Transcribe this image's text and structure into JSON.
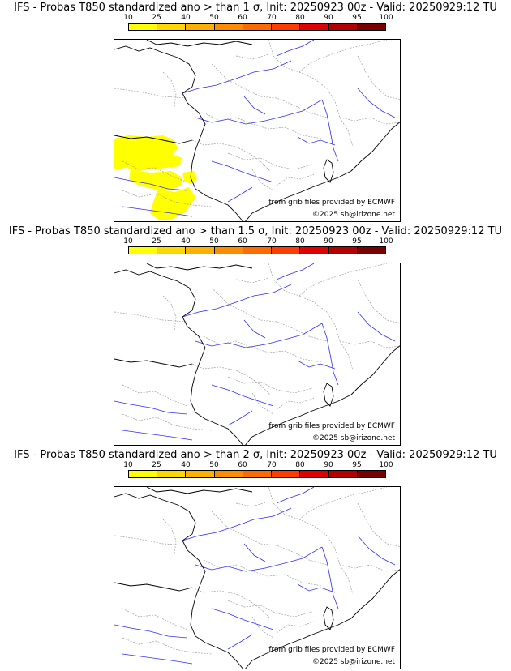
{
  "panels": [
    {
      "title": "IFS - Probas T850  standardized ano > than 1 σ, Init: 20250923 00z - Valid: 20250929:12 TU",
      "has_anomaly": true
    },
    {
      "title": "IFS - Probas T850  standardized ano > than 1.5 σ, Init: 20250923 00z - Valid: 20250929:12 TU",
      "has_anomaly": false
    },
    {
      "title": "IFS - Probas T850  standardized ano > than 2 σ, Init: 20250923 00z - Valid: 20250929:12 TU",
      "has_anomaly": false
    }
  ],
  "scale_labels": [
    "10",
    "25",
    "40",
    "50",
    "60",
    "70",
    "80",
    "90",
    "95",
    "100"
  ],
  "scale_colors": [
    "#ffff00",
    "#ffd700",
    "#ffb000",
    "#ff8c00",
    "#ff6a00",
    "#ff3c00",
    "#e00000",
    "#b40000",
    "#7a0000"
  ],
  "credit_source": "from grib files provided by ECMWF",
  "credit_copyright": "©2025 sb@irizone.net",
  "colors": {
    "anomaly": "#ffff00",
    "rivers": "#3030ff",
    "borders": "#a0a0a0",
    "coast": "#000000"
  }
}
